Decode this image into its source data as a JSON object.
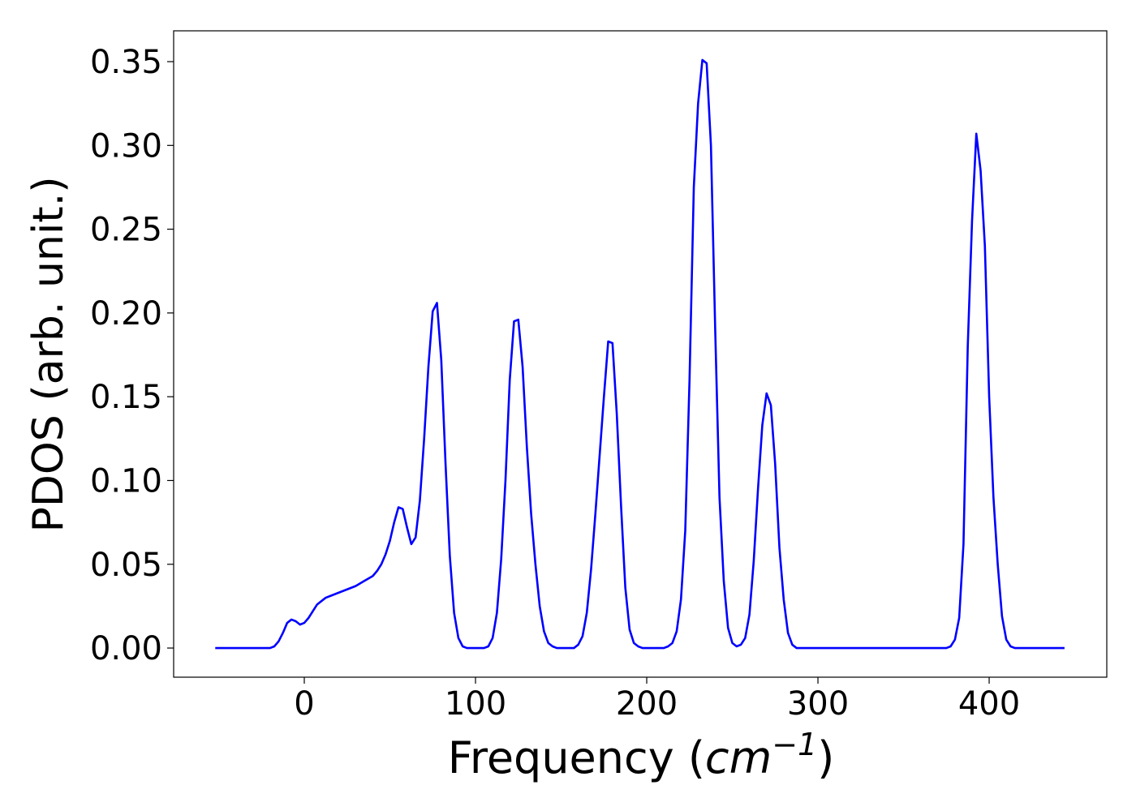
{
  "chart_data": {
    "type": "line",
    "xlabel": [
      "Frequency (",
      "cm",
      "−1",
      ")"
    ],
    "ylabel": "PDOS (arb. unit.)",
    "color": "#0000ff",
    "x": [
      -52,
      -20,
      -17.5,
      -15,
      -12.5,
      -10,
      -7.5,
      -5,
      -2.5,
      0,
      2.5,
      5,
      7.5,
      10,
      12.5,
      15,
      20,
      25,
      30,
      35,
      40,
      42.5,
      45,
      47.5,
      50,
      52.5,
      55,
      57.5,
      60,
      62.5,
      65,
      67.5,
      70,
      72.5,
      75,
      77.5,
      80,
      82.5,
      85,
      87.5,
      90,
      92.5,
      95,
      105,
      107.5,
      110,
      112.5,
      115,
      117.5,
      120,
      122.5,
      125,
      127.5,
      130,
      132.5,
      135,
      137.5,
      140,
      142.5,
      145,
      147.5,
      157.5,
      160,
      162.5,
      165,
      167.5,
      170,
      172.5,
      175,
      177.5,
      180,
      182.5,
      185,
      187.5,
      190,
      192.5,
      195,
      197.5,
      210,
      212.5,
      215,
      217.5,
      220,
      222.5,
      225,
      227.5,
      230,
      232.5,
      235,
      237.5,
      240,
      242.5,
      245,
      247.5,
      250,
      252.5,
      255,
      257.5,
      260,
      262.5,
      265,
      267.5,
      270,
      272.5,
      275,
      277.5,
      280,
      282.5,
      285,
      287.5,
      375,
      377.5,
      380,
      382.5,
      385,
      387.5,
      390,
      392.5,
      395,
      397.5,
      400,
      402.5,
      405,
      407.5,
      410,
      412.5,
      415,
      444
    ],
    "values": [
      0,
      0,
      0.001,
      0.004,
      0.009,
      0.015,
      0.017,
      0.016,
      0.014,
      0.015,
      0.018,
      0.022,
      0.026,
      0.028,
      0.03,
      0.031,
      0.033,
      0.035,
      0.037,
      0.04,
      0.043,
      0.046,
      0.05,
      0.056,
      0.064,
      0.075,
      0.084,
      0.083,
      0.072,
      0.062,
      0.066,
      0.088,
      0.125,
      0.168,
      0.201,
      0.206,
      0.172,
      0.11,
      0.055,
      0.021,
      0.006,
      0.001,
      0,
      0,
      0.001,
      0.006,
      0.021,
      0.053,
      0.1,
      0.16,
      0.195,
      0.196,
      0.168,
      0.12,
      0.08,
      0.05,
      0.025,
      0.01,
      0.003,
      0.001,
      0,
      0,
      0.002,
      0.007,
      0.021,
      0.047,
      0.08,
      0.115,
      0.15,
      0.183,
      0.182,
      0.14,
      0.085,
      0.036,
      0.011,
      0.003,
      0.001,
      0,
      0,
      0.001,
      0.003,
      0.01,
      0.029,
      0.07,
      0.16,
      0.275,
      0.325,
      0.351,
      0.349,
      0.3,
      0.19,
      0.09,
      0.04,
      0.012,
      0.003,
      0.001,
      0.002,
      0.006,
      0.02,
      0.052,
      0.095,
      0.133,
      0.152,
      0.145,
      0.11,
      0.06,
      0.029,
      0.009,
      0.002,
      0,
      0,
      0.001,
      0.005,
      0.018,
      0.062,
      0.18,
      0.255,
      0.307,
      0.285,
      0.24,
      0.15,
      0.09,
      0.05,
      0.019,
      0.005,
      0.001,
      0,
      0
    ],
    "xlim": [
      -76.3,
      468.7
    ],
    "ylim": [
      -0.0174,
      0.3684
    ],
    "xticks": [
      0,
      100,
      200,
      300,
      400
    ],
    "yticks": [
      {
        "value": 0,
        "label": "0.00"
      },
      0.05,
      {
        "value": 0.1,
        "label": "0.10"
      },
      0.15,
      {
        "value": 0.2,
        "label": "0.20"
      },
      0.25,
      {
        "value": 0.3,
        "label": "0.30"
      },
      0.35
    ]
  }
}
